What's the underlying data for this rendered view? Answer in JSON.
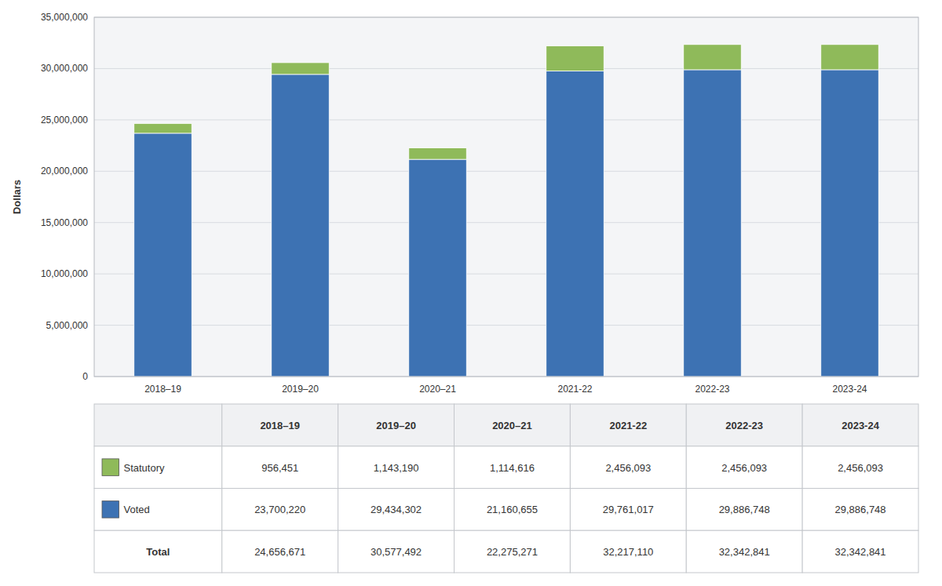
{
  "chart_data": {
    "type": "bar",
    "stacked": true,
    "grid": true,
    "ylabel": "Dollars",
    "categories": [
      "2018–19",
      "2019–20",
      "2020–21",
      "2021-22",
      "2022-23",
      "2023-24"
    ],
    "series": [
      {
        "name": "Voted",
        "color": "#3d72b3",
        "values": [
          23700220,
          29434302,
          21160655,
          29761017,
          29886748,
          29886748
        ],
        "value_labels": [
          "23,700,220",
          "29,434,302",
          "21,160,655",
          "29,761,017",
          "29,886,748",
          "29,886,748"
        ]
      },
      {
        "name": "Statutory",
        "color": "#8fba5a",
        "values": [
          956451,
          1143190,
          1114616,
          2456093,
          2456093,
          2456093
        ],
        "value_labels": [
          "956,451",
          "1,143,190",
          "1,114,616",
          "2,456,093",
          "2,456,093",
          "2,456,093"
        ]
      }
    ],
    "totals": {
      "name": "Total",
      "values": [
        24656671,
        30577492,
        22275271,
        32217110,
        32342841,
        32342841
      ],
      "value_labels": [
        "24,656,671",
        "30,577,492",
        "22,275,271",
        "32,217,110",
        "32,342,841",
        "32,342,841"
      ]
    },
    "ylim": [
      0,
      35000000
    ],
    "yticks": [
      0,
      {
        "value": 5000000,
        "label": "5,000,000"
      },
      {
        "value": 10000000,
        "label": "10,000,000"
      },
      {
        "value": 15000000,
        "label": "15,000,000"
      },
      {
        "value": 20000000,
        "label": "20,000,000"
      },
      {
        "value": 25000000,
        "label": "25,000,000"
      },
      {
        "value": 30000000,
        "label": "30,000,000"
      },
      {
        "value": 35000000,
        "label": "35,000,000"
      }
    ]
  }
}
